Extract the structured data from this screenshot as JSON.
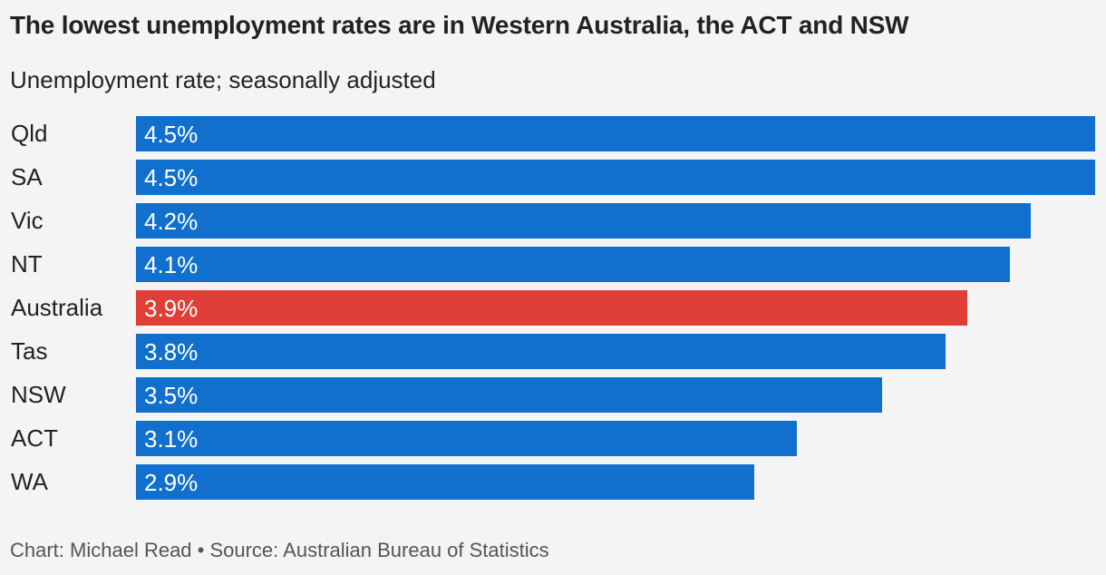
{
  "title": "The lowest unemployment rates are in Western Australia, the ACT and NSW",
  "subtitle": "Unemployment rate; seasonally adjusted",
  "footer": "Chart: Michael Read • Source: Australian Bureau of Statistics",
  "colors": {
    "bar": "#1170cd",
    "highlight": "#e03f37",
    "background": "#f4f4f4"
  },
  "chart_data": {
    "type": "bar",
    "orientation": "horizontal",
    "title": "The lowest unemployment rates are in Western Australia, the ACT and NSW",
    "subtitle": "Unemployment rate; seasonally adjusted",
    "xlabel": "",
    "ylabel": "",
    "xlim": [
      0,
      4.5
    ],
    "grid": false,
    "legend": "none",
    "highlight_category": "Australia",
    "categories": [
      "Qld",
      "SA",
      "Vic",
      "NT",
      "Australia",
      "Tas",
      "NSW",
      "ACT",
      "WA"
    ],
    "values": [
      4.5,
      4.5,
      4.2,
      4.1,
      3.9,
      3.8,
      3.5,
      3.1,
      2.9
    ],
    "value_labels": [
      "4.5%",
      "4.5%",
      "4.2%",
      "4.1%",
      "3.9%",
      "3.8%",
      "3.5%",
      "3.1%",
      "2.9%"
    ]
  }
}
